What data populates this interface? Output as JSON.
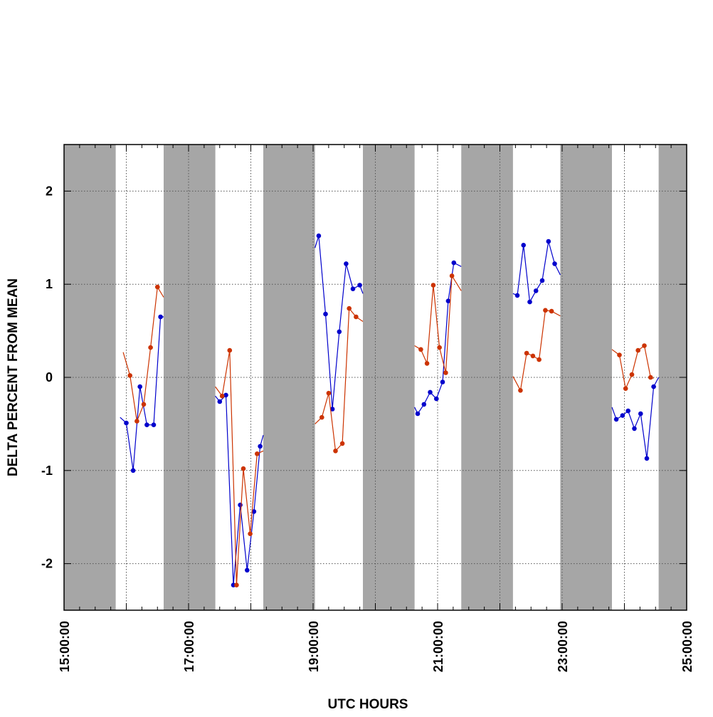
{
  "chart_data": {
    "type": "line",
    "title": "",
    "xlabel": "UTC HOURS",
    "ylabel": "DELTA PERCENT FROM MEAN",
    "xlim": [
      15,
      25
    ],
    "ylim": [
      -2.5,
      2.5
    ],
    "x_ticks": [
      15,
      17,
      19,
      21,
      23,
      25
    ],
    "x_tick_labels": [
      "15:00:00",
      "17:00:00",
      "19:00:00",
      "21:00:00",
      "23:00:00",
      "25:00:00"
    ],
    "y_ticks": [
      -2,
      -1,
      0,
      1,
      2
    ],
    "y_tick_labels": [
      "-2",
      "-1",
      "0",
      "1",
      "2"
    ],
    "grid": true,
    "shaded_intervals_hours": [
      [
        15.0,
        15.83
      ],
      [
        16.6,
        17.43
      ],
      [
        18.2,
        19.03
      ],
      [
        19.8,
        20.63
      ],
      [
        21.38,
        22.21
      ],
      [
        22.97,
        23.8
      ],
      [
        24.55,
        25.0
      ]
    ],
    "series": [
      {
        "name": "blue",
        "color": "#0000cc",
        "segments": [
          [
            [
              15.9,
              -0.43
            ],
            [
              16.0,
              -0.49
            ],
            [
              16.11,
              -1.0
            ],
            [
              16.22,
              -0.1
            ],
            [
              16.33,
              -0.51
            ],
            [
              16.44,
              -0.51
            ],
            [
              16.55,
              0.65
            ],
            [
              16.6,
              0.65
            ]
          ],
          [
            [
              17.43,
              -0.2
            ],
            [
              17.5,
              -0.26
            ],
            [
              17.6,
              -0.19
            ],
            [
              17.72,
              -2.23
            ],
            [
              17.83,
              -1.37
            ],
            [
              17.94,
              -2.07
            ],
            [
              18.05,
              -1.44
            ],
            [
              18.15,
              -0.74
            ],
            [
              18.2,
              -0.62
            ]
          ],
          [
            [
              19.03,
              1.39
            ],
            [
              19.09,
              1.52
            ],
            [
              19.2,
              0.68
            ],
            [
              19.31,
              -0.34
            ],
            [
              19.42,
              0.49
            ],
            [
              19.53,
              1.22
            ],
            [
              19.64,
              0.95
            ],
            [
              19.75,
              0.99
            ],
            [
              19.8,
              0.9
            ]
          ],
          [
            [
              20.63,
              -0.32
            ],
            [
              20.68,
              -0.39
            ],
            [
              20.78,
              -0.29
            ],
            [
              20.88,
              -0.16
            ],
            [
              20.98,
              -0.23
            ],
            [
              21.08,
              -0.05
            ],
            [
              21.17,
              0.82
            ],
            [
              21.26,
              1.23
            ],
            [
              21.38,
              1.19
            ]
          ],
          [
            [
              22.21,
              0.9
            ],
            [
              22.28,
              0.88
            ],
            [
              22.38,
              1.42
            ],
            [
              22.48,
              0.81
            ],
            [
              22.58,
              0.93
            ],
            [
              22.68,
              1.04
            ],
            [
              22.78,
              1.46
            ],
            [
              22.88,
              1.22
            ],
            [
              22.97,
              1.1
            ]
          ],
          [
            [
              23.8,
              -0.32
            ],
            [
              23.87,
              -0.45
            ],
            [
              23.97,
              -0.41
            ],
            [
              24.06,
              -0.36
            ],
            [
              24.16,
              -0.55
            ],
            [
              24.26,
              -0.39
            ],
            [
              24.36,
              -0.87
            ],
            [
              24.47,
              -0.1
            ],
            [
              24.55,
              0.0
            ]
          ]
        ]
      },
      {
        "name": "orange",
        "color": "#cc3300",
        "segments": [
          [
            [
              15.95,
              0.27
            ],
            [
              16.06,
              0.02
            ],
            [
              16.17,
              -0.47
            ],
            [
              16.28,
              -0.29
            ],
            [
              16.39,
              0.32
            ],
            [
              16.5,
              0.97
            ],
            [
              16.6,
              0.86
            ]
          ],
          [
            [
              17.43,
              -0.1
            ],
            [
              17.54,
              -0.2
            ],
            [
              17.66,
              0.29
            ],
            [
              17.77,
              -2.23
            ],
            [
              17.88,
              -0.98
            ],
            [
              17.99,
              -1.68
            ],
            [
              18.1,
              -0.82
            ],
            [
              18.2,
              -0.79
            ]
          ],
          [
            [
              19.03,
              -0.5
            ],
            [
              19.14,
              -0.43
            ],
            [
              19.25,
              -0.17
            ],
            [
              19.36,
              -0.79
            ],
            [
              19.47,
              -0.71
            ],
            [
              19.58,
              0.74
            ],
            [
              19.69,
              0.65
            ],
            [
              19.8,
              0.6
            ]
          ],
          [
            [
              20.63,
              0.34
            ],
            [
              20.73,
              0.3
            ],
            [
              20.83,
              0.15
            ],
            [
              20.93,
              0.99
            ],
            [
              21.03,
              0.32
            ],
            [
              21.13,
              0.05
            ],
            [
              21.23,
              1.09
            ],
            [
              21.38,
              0.93
            ]
          ],
          [
            [
              22.21,
              0.01
            ],
            [
              22.33,
              -0.14
            ],
            [
              22.43,
              0.26
            ],
            [
              22.53,
              0.23
            ],
            [
              22.63,
              0.19
            ],
            [
              22.73,
              0.72
            ],
            [
              22.83,
              0.71
            ],
            [
              22.97,
              0.66
            ]
          ],
          [
            [
              23.8,
              0.3
            ],
            [
              23.92,
              0.24
            ],
            [
              24.02,
              -0.12
            ],
            [
              24.12,
              0.03
            ],
            [
              24.22,
              0.29
            ],
            [
              24.32,
              0.34
            ],
            [
              24.42,
              0.0
            ],
            [
              24.47,
              -0.01
            ]
          ]
        ]
      }
    ]
  }
}
